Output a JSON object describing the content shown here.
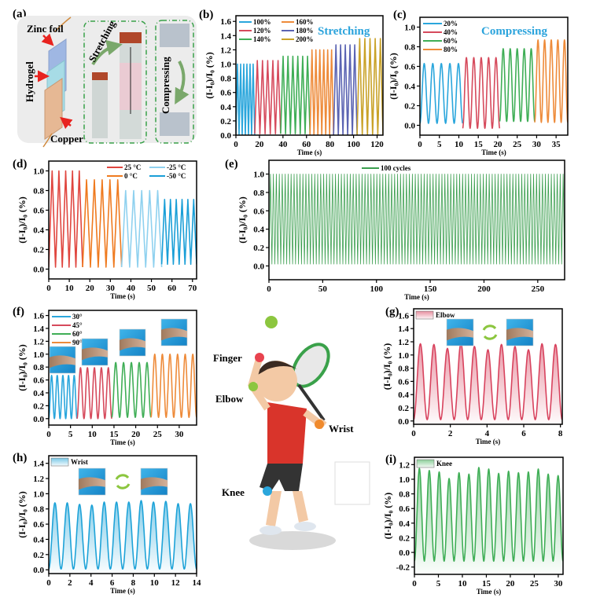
{
  "panel_a": {
    "label": "(a)",
    "zinc_foil": "Zinc foil",
    "hydrogel": "Hydrogel",
    "copper": "Copper",
    "stretching": "Stretching",
    "compressing": "Compressing"
  },
  "illustration": {
    "finger": "Finger",
    "elbow": "Elbow",
    "wrist": "Wrist",
    "knee": "Knee"
  },
  "chart_data": [
    {
      "id": "b",
      "type": "line",
      "panel_label": "(b)",
      "waveform": "triangle",
      "xlabel": "Time (s)",
      "ylabel": "(I-I₀)/I₀ (%)",
      "xlim": [
        0,
        125
      ],
      "ylim": [
        0,
        1.68
      ],
      "xticks": [
        0,
        20,
        40,
        60,
        80,
        100,
        120
      ],
      "yticks": [
        0,
        0.2,
        0.4,
        0.6,
        0.8,
        1.0,
        1.2,
        1.4,
        1.6
      ],
      "annotation": "Stretching",
      "legend": "top-left",
      "series": [
        {
          "name": "100%",
          "color": "#2aa6dc",
          "x_range": [
            0,
            16
          ],
          "cycles": 6,
          "peak": 1.0,
          "trough": 0.0
        },
        {
          "name": "120%",
          "color": "#d64a5c",
          "x_range": [
            16,
            38
          ],
          "cycles": 5,
          "peak": 1.05,
          "trough": 0.02
        },
        {
          "name": "140%",
          "color": "#3fae56",
          "x_range": [
            38,
            63
          ],
          "cycles": 6,
          "peak": 1.11,
          "trough": 0.02
        },
        {
          "name": "160%",
          "color": "#ee8b3a",
          "x_range": [
            63,
            83
          ],
          "cycles": 6,
          "peak": 1.2,
          "trough": 0.0
        },
        {
          "name": "180%",
          "color": "#5a63b2",
          "x_range": [
            83,
            103
          ],
          "cycles": 5,
          "peak": 1.27,
          "trough": 0.0
        },
        {
          "name": "200%",
          "color": "#c9a228",
          "x_range": [
            103,
            125
          ],
          "cycles": 5,
          "peak": 1.36,
          "trough": 0.0
        }
      ]
    },
    {
      "id": "c",
      "type": "line",
      "panel_label": "(c)",
      "waveform": "sine",
      "xlabel": "Time (s)",
      "ylabel": "(I-I₀)/I₀ (%)",
      "xlim": [
        0,
        38
      ],
      "ylim": [
        -0.1,
        1.1
      ],
      "xticks": [
        0,
        5,
        10,
        15,
        20,
        25,
        30,
        35
      ],
      "yticks": [
        0,
        0.2,
        0.4,
        0.6,
        0.8,
        1.0
      ],
      "annotation": "Compressing",
      "legend": "top-left",
      "series": [
        {
          "name": "20%",
          "color": "#2aa6dc",
          "x_range": [
            0,
            11
          ],
          "cycles": 5,
          "peak": 0.63,
          "trough": 0.02
        },
        {
          "name": "40%",
          "color": "#d64a5c",
          "x_range": [
            11,
            20.5
          ],
          "cycles": 5,
          "peak": 0.69,
          "trough": -0.03
        },
        {
          "name": "60%",
          "color": "#3fae56",
          "x_range": [
            20.5,
            29.5
          ],
          "cycles": 5,
          "peak": 0.78,
          "trough": 0.04
        },
        {
          "name": "80%",
          "color": "#ee8b3a",
          "x_range": [
            29.5,
            38
          ],
          "cycles": 5,
          "peak": 0.87,
          "trough": 0.03
        }
      ]
    },
    {
      "id": "d",
      "type": "line",
      "panel_label": "(d)",
      "waveform": "triangle",
      "xlabel": "Time (s)",
      "ylabel": "(I-I₀)/I₀ (%)",
      "xlim": [
        0,
        72
      ],
      "ylim": [
        -0.1,
        1.1
      ],
      "xticks": [
        0,
        10,
        20,
        30,
        40,
        50,
        60,
        70
      ],
      "yticks": [
        0,
        0.2,
        0.4,
        0.6,
        0.8,
        1.0
      ],
      "legend": "top-right",
      "series": [
        {
          "name": "25 °C",
          "color": "#e0463f",
          "x_range": [
            0,
            16.5
          ],
          "cycles": 5,
          "peak": 1.0,
          "trough": 0.02
        },
        {
          "name": "0 °C",
          "color": "#ef7a1f",
          "x_range": [
            16.5,
            35.5
          ],
          "cycles": 5,
          "peak": 0.91,
          "trough": 0.02
        },
        {
          "name": "-25 °C",
          "color": "#8fd1ef",
          "x_range": [
            35.5,
            55
          ],
          "cycles": 5,
          "peak": 0.8,
          "trough": 0.02
        },
        {
          "name": "-50 °C",
          "color": "#1a9fd7",
          "x_range": [
            55,
            72
          ],
          "cycles": 6,
          "peak": 0.71,
          "trough": 0.05
        }
      ]
    },
    {
      "id": "e",
      "type": "line",
      "panel_label": "(e)",
      "waveform": "triangle",
      "xlabel": "Time (s)",
      "ylabel": "(I-I₀)/I₀ (%)",
      "xlim": [
        0,
        275
      ],
      "ylim": [
        -0.15,
        1.15
      ],
      "xticks": [
        0,
        50,
        100,
        150,
        200,
        250
      ],
      "yticks": [
        0,
        0.2,
        0.4,
        0.6,
        0.8,
        1.0
      ],
      "legend": "top-center",
      "series": [
        {
          "name": "100 cycles",
          "color": "#3a9e4e",
          "x_range": [
            0,
            275
          ],
          "cycles": 100,
          "peak": 1.0,
          "trough": 0.02
        }
      ]
    },
    {
      "id": "f",
      "type": "line",
      "panel_label": "(f)",
      "waveform": "sine",
      "xlabel": "Time (s)",
      "ylabel": "(I-I₀)/I₀ (%)",
      "xlim": [
        0,
        34
      ],
      "ylim": [
        -0.1,
        1.68
      ],
      "xticks": [
        0,
        5,
        10,
        15,
        20,
        25,
        30
      ],
      "yticks": [
        0,
        0.2,
        0.4,
        0.6,
        0.8,
        1.0,
        1.2,
        1.4,
        1.6
      ],
      "legend": "top-left",
      "series": [
        {
          "name": "30°",
          "color": "#2aa6dc",
          "x_range": [
            0,
            6.5
          ],
          "cycles": 5,
          "peak": 0.67,
          "trough": 0.0
        },
        {
          "name": "45°",
          "color": "#d64a5c",
          "x_range": [
            6.5,
            14.5
          ],
          "cycles": 5,
          "peak": 0.79,
          "trough": 0.0
        },
        {
          "name": "60°",
          "color": "#3fae56",
          "x_range": [
            14.5,
            23.5
          ],
          "cycles": 5,
          "peak": 0.87,
          "trough": 0.02
        },
        {
          "name": "90°",
          "color": "#ee8b3a",
          "x_range": [
            23.5,
            34
          ],
          "cycles": 6,
          "peak": 1.0,
          "trough": 0.02
        }
      ]
    },
    {
      "id": "g",
      "type": "area",
      "panel_label": "(g)",
      "waveform": "sine",
      "xlabel": "Time (s)",
      "ylabel": "(I-I₀)/I₀ (%)",
      "xlim": [
        0,
        8.1
      ],
      "ylim": [
        -0.05,
        1.7
      ],
      "xticks": [
        0,
        2,
        4,
        6,
        8
      ],
      "yticks": [
        0,
        0.2,
        0.4,
        0.6,
        0.8,
        1.0,
        1.2,
        1.4,
        1.6
      ],
      "legend": "top-left",
      "series": [
        {
          "name": "Elbow",
          "color": "#d8435e",
          "x_range": [
            0,
            8.1
          ],
          "trough": 0.02,
          "peaks": [
            1.17,
            1.16,
            1.1,
            1.18,
            1.13,
            1.08,
            1.16,
            1.13,
            1.08,
            1.17,
            1.16
          ]
        }
      ]
    },
    {
      "id": "h",
      "type": "area",
      "panel_label": "(h)",
      "waveform": "sine",
      "xlabel": "Time (s)",
      "ylabel": "(I-I₀)/I₀ (%)",
      "xlim": [
        0,
        14
      ],
      "ylim": [
        -0.05,
        1.5
      ],
      "xticks": [
        0,
        2,
        4,
        6,
        8,
        10,
        12,
        14
      ],
      "yticks": [
        0,
        0.2,
        0.4,
        0.6,
        0.8,
        1.0,
        1.2,
        1.4
      ],
      "legend": "top-left",
      "series": [
        {
          "name": "Wrist",
          "color": "#1ea3d8",
          "x_range": [
            0,
            14
          ],
          "trough": 0.01,
          "peaks": [
            0.88,
            0.88,
            0.86,
            0.85,
            0.89,
            0.89,
            0.89,
            0.91,
            0.89,
            0.9,
            0.87,
            0.87
          ]
        }
      ]
    },
    {
      "id": "i",
      "type": "area",
      "panel_label": "(i)",
      "waveform": "sine",
      "xlabel": "Time (s)",
      "ylabel": "(I-I₀)/I₀ (%)",
      "xlim": [
        0,
        31
      ],
      "ylim": [
        -0.3,
        1.3
      ],
      "xticks": [
        0,
        5,
        10,
        15,
        20,
        25,
        30
      ],
      "yticks": [
        -0.2,
        0,
        0.2,
        0.4,
        0.6,
        0.8,
        1.0,
        1.2
      ],
      "legend": "top-left",
      "series": [
        {
          "name": "Knee",
          "color": "#3fae56",
          "x_range": [
            0,
            31
          ],
          "trough": -0.12,
          "peaks": [
            1.15,
            1.12,
            1.1,
            1.01,
            1.09,
            1.07,
            1.16,
            1.14,
            1.08,
            1.11,
            1.09,
            1.1,
            1.14,
            1.07,
            1.05
          ]
        }
      ]
    }
  ]
}
